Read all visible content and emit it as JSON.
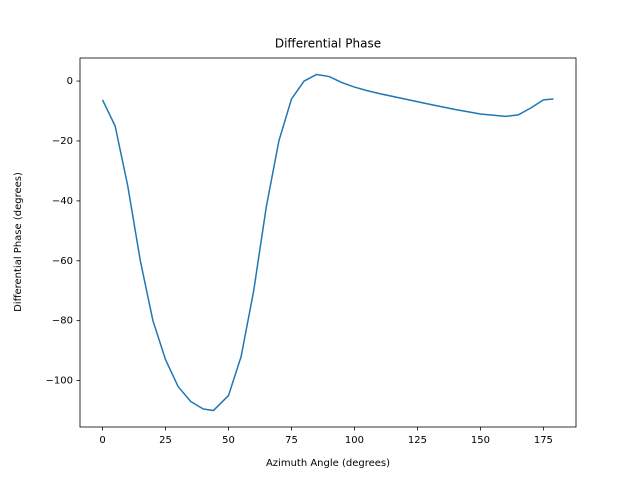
{
  "chart_data": {
    "type": "line",
    "title": "Differential Phase",
    "x_label": "Azimuth Angle (degrees)",
    "y_label": "Differential Phase (degrees)",
    "x": [
      0,
      5,
      10,
      15,
      20,
      25,
      30,
      35,
      40,
      44,
      50,
      55,
      60,
      65,
      70,
      75,
      80,
      85,
      90,
      95,
      100,
      105,
      110,
      120,
      130,
      140,
      150,
      160,
      165,
      170,
      175,
      179
    ],
    "series": [
      {
        "name": "Differential Phase",
        "color": "#1f77b4",
        "values": [
          -6.3,
          -15,
          -35,
          -60,
          -80,
          -93,
          -102,
          -107,
          -109.5,
          -110,
          -105,
          -92,
          -70,
          -42,
          -20,
          -6,
          0,
          2.2,
          1.5,
          -0.5,
          -2,
          -3.2,
          -4.2,
          -6,
          -7.8,
          -9.5,
          -11,
          -11.8,
          -11.3,
          -9,
          -6.3,
          -6
        ]
      }
    ],
    "xlim": [
      -8.95,
      187.95
    ],
    "ylim": [
      -115.5,
      7.7
    ],
    "xticks": [
      0,
      25,
      50,
      75,
      100,
      125,
      150,
      175
    ],
    "yticks": [
      {
        "value": -100,
        "label": "−100"
      },
      {
        "value": -80,
        "label": "−80"
      },
      {
        "value": -60,
        "label": "−60"
      },
      {
        "value": -40,
        "label": "−40"
      },
      {
        "value": -20,
        "label": "−20"
      },
      0
    ],
    "grid": false
  }
}
